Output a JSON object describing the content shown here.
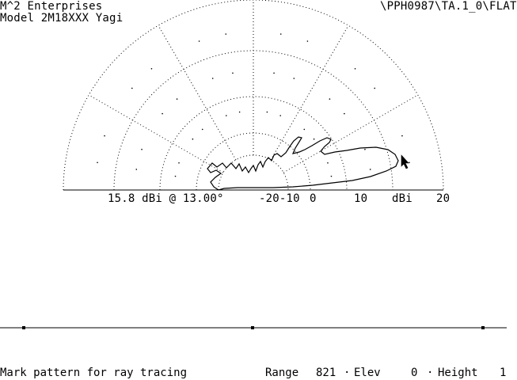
{
  "header": {
    "company": "M^2 Enterprises",
    "model": "Model 2M18XXX Yagi",
    "path": "\\PPH0987\\TA.1_0\\FLAT"
  },
  "polar_plot": {
    "peak_readout": "15.8 dBi @ 13.00°",
    "scale_labels": {
      "m20_m10": "-20-10",
      "zero": "0",
      "ten": "10",
      "unit": "dBi",
      "twenty": "20"
    },
    "pattern_peak_dbi": 15.8,
    "pattern_peak_elevation_deg": 13.0
  },
  "status_bar": {
    "hint": "Mark pattern for ray tracing",
    "range_label": "Range",
    "range_value": "821",
    "elev_label": "Elev",
    "elev_value": "0",
    "height_label": "Height",
    "height_value": "1"
  },
  "colors": {
    "background": "#ffffff",
    "foreground": "#000000"
  }
}
